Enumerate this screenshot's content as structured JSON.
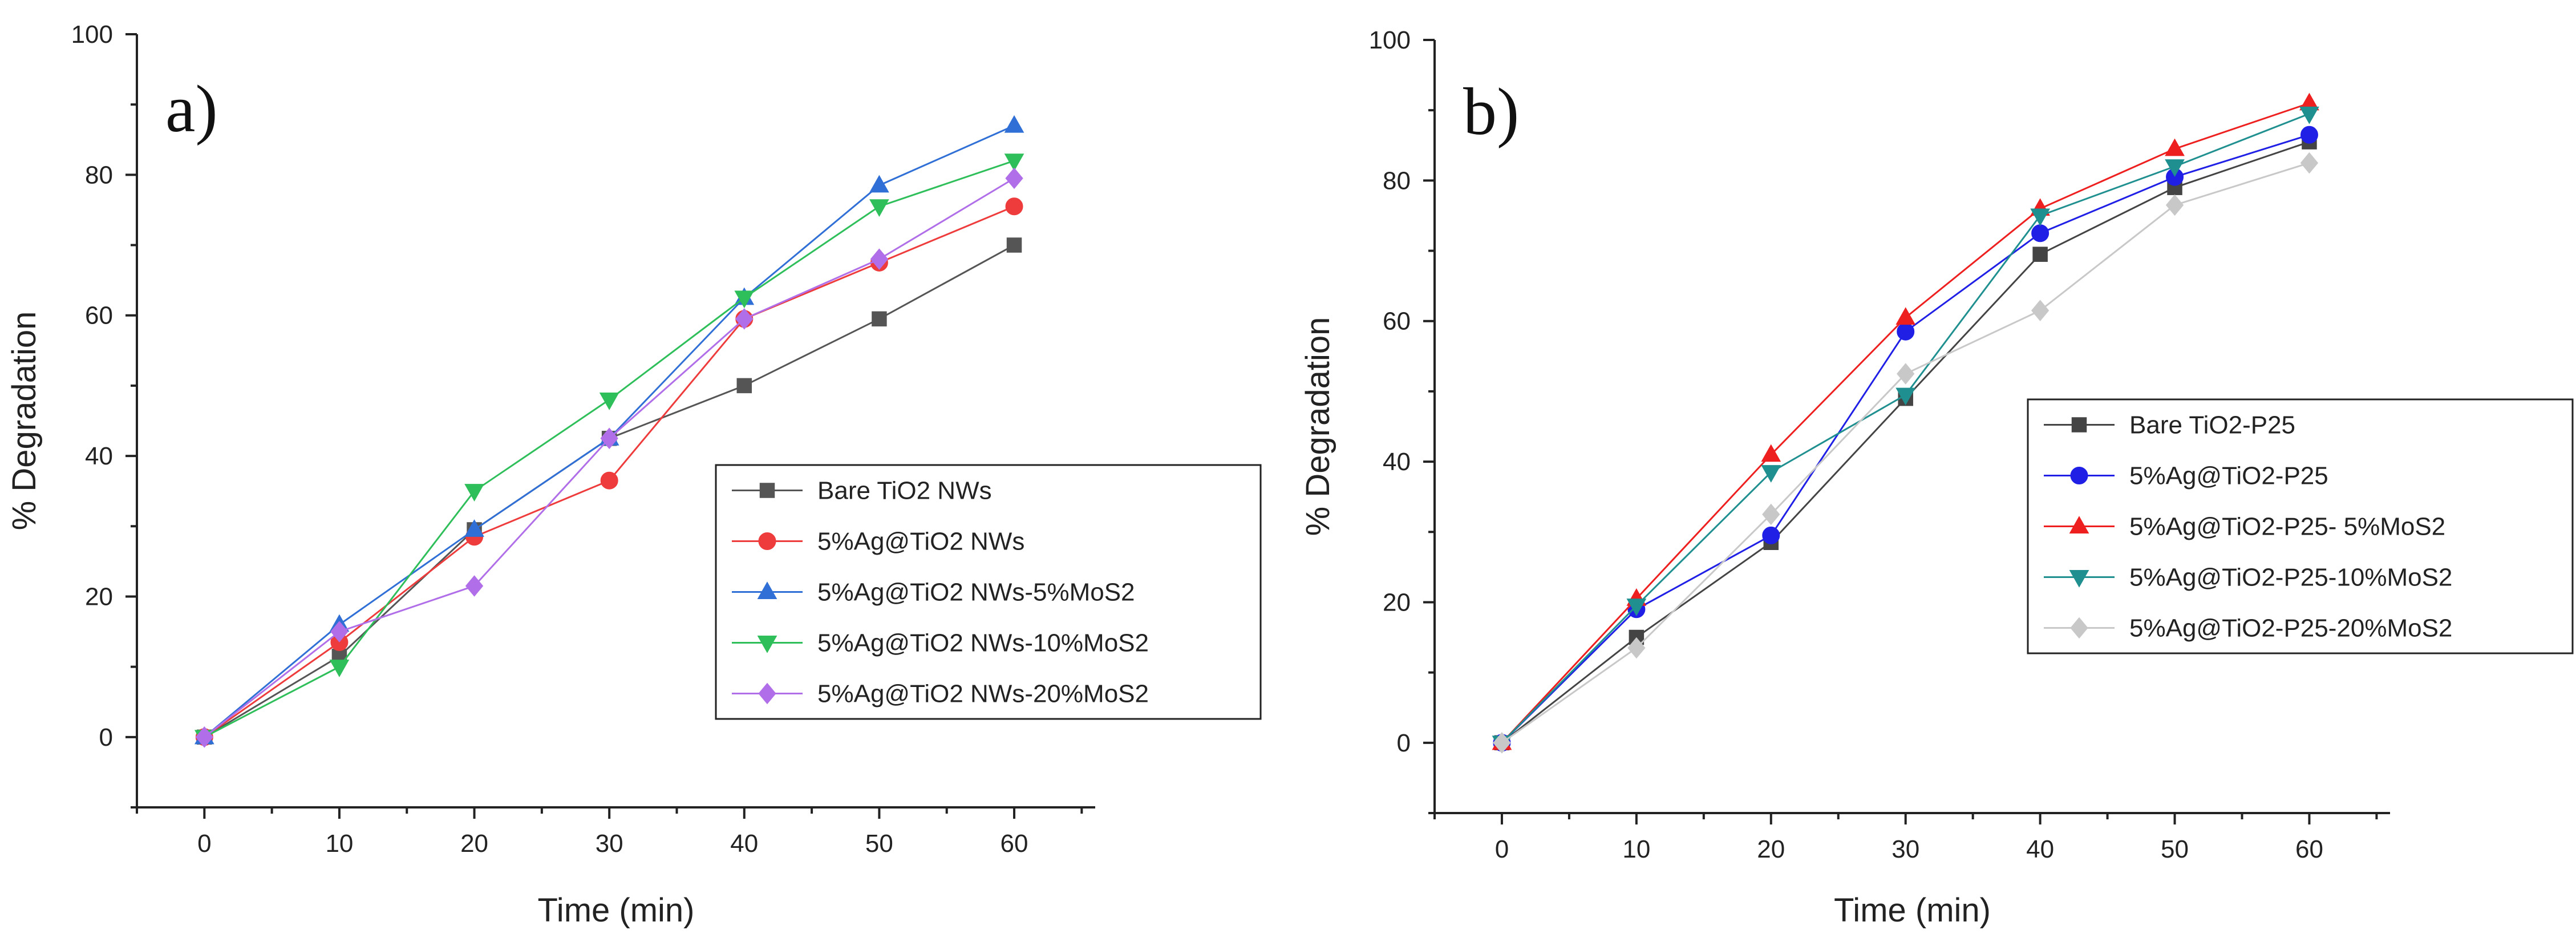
{
  "chart_data": [
    {
      "type": "line",
      "panel_label": "a)",
      "xlabel": "Time (min)",
      "ylabel": "% Degradation",
      "xlim": [
        -5,
        66
      ],
      "ylim": [
        -10,
        100
      ],
      "xticks": [
        0,
        10,
        20,
        30,
        40,
        50,
        60
      ],
      "xticklabels": [
        "0",
        "10",
        "20",
        "30",
        "40",
        "50",
        "60"
      ],
      "yticks": [
        0,
        20,
        40,
        60,
        80,
        100
      ],
      "yticklabels": [
        "0",
        "20",
        "40",
        "60",
        "80",
        "100"
      ],
      "x": [
        0,
        10,
        20,
        30,
        40,
        50,
        60
      ],
      "legend_position": "center-right",
      "series": [
        {
          "name": "Bare TiO2 NWs",
          "color": "#555555",
          "marker": "square",
          "values": [
            0,
            11.5,
            29.5,
            42.5,
            50,
            59.5,
            70
          ]
        },
        {
          "name": "5%Ag@TiO2 NWs",
          "color": "#ee3b3b",
          "marker": "circle",
          "values": [
            0,
            13.5,
            28.5,
            36.5,
            59.5,
            67.5,
            75.5
          ]
        },
        {
          "name": "5%Ag@TiO2 NWs-5%MoS2",
          "color": "#2f6fd6",
          "marker": "triangle-up",
          "values": [
            0,
            16,
            29.5,
            42.5,
            62.5,
            78.5,
            87
          ]
        },
        {
          "name": "5%Ag@TiO2 NWs-10%MoS2",
          "color": "#2fbf5a",
          "marker": "triangle-down",
          "values": [
            0,
            10,
            35,
            48,
            62.5,
            75.5,
            82
          ]
        },
        {
          "name": "5%Ag@TiO2 NWs-20%MoS2",
          "color": "#b06ee8",
          "marker": "diamond",
          "values": [
            0,
            15,
            21.5,
            42.5,
            59.5,
            68,
            79.5
          ]
        }
      ]
    },
    {
      "type": "line",
      "panel_label": "b)",
      "xlabel": "Time (min)",
      "ylabel": "% Degradation",
      "xlim": [
        -5,
        66
      ],
      "ylim": [
        -10,
        100
      ],
      "xticks": [
        0,
        10,
        20,
        30,
        40,
        50,
        60
      ],
      "xticklabels": [
        "0",
        "10",
        "20",
        "30",
        "40",
        "50",
        "60"
      ],
      "yticks": [
        0,
        20,
        40,
        60,
        80,
        100
      ],
      "yticklabels": [
        "0",
        "20",
        "40",
        "60",
        "80",
        "100"
      ],
      "x": [
        0,
        10,
        20,
        30,
        40,
        50,
        60
      ],
      "legend_position": "center-right",
      "series": [
        {
          "name": "Bare TiO2-P25",
          "color": "#444444",
          "marker": "square",
          "values": [
            0,
            15,
            28.5,
            49,
            69.5,
            79,
            85.5
          ]
        },
        {
          "name": "5%Ag@TiO2-P25",
          "color": "#1f1fe6",
          "marker": "circle",
          "values": [
            0,
            19,
            29.5,
            58.5,
            72.5,
            80.5,
            86.5
          ]
        },
        {
          "name": "5%Ag@TiO2-P25- 5%MoS2",
          "color": "#ee1f1f",
          "marker": "triangle-up",
          "values": [
            0,
            20.5,
            41,
            60.5,
            76,
            84.5,
            91
          ]
        },
        {
          "name": "5%Ag@TiO2-P25-10%MoS2",
          "color": "#1f8f8f",
          "marker": "triangle-down",
          "values": [
            0,
            19.5,
            38.5,
            49.5,
            75,
            82,
            89.5
          ]
        },
        {
          "name": "5%Ag@TiO2-P25-20%MoS2",
          "color": "#c8c8c8",
          "marker": "diamond",
          "values": [
            0,
            13.5,
            32.5,
            52.5,
            61.5,
            76.5,
            82.5
          ]
        }
      ]
    }
  ]
}
